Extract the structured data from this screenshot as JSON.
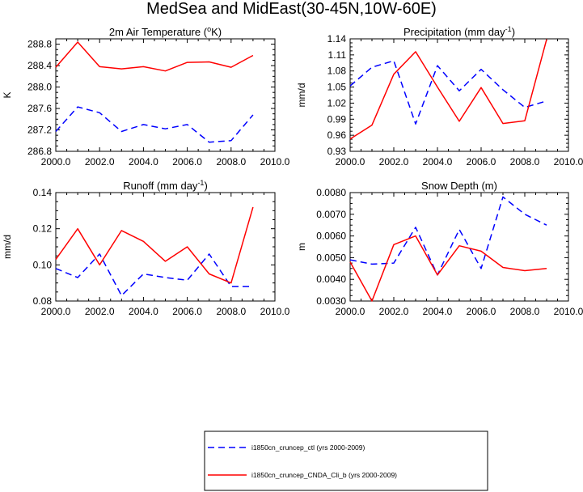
{
  "figure": {
    "title": "MedSea and MidEast(30-45N,10W-60E)"
  },
  "legend": {
    "entries": [
      {
        "label": "i1850cn_cruncep_ctl (yrs 2000-2009)",
        "color": "#0000ff",
        "style": "dashed"
      },
      {
        "label": "i1850cn_cruncep_CNDA_Cli_b (yrs 2000-2009)",
        "color": "#ff0000",
        "style": "solid"
      }
    ]
  },
  "chart_data": [
    {
      "type": "line",
      "title": "2m Air Temperature (°K)",
      "title_base": "2m Air Temperature (",
      "title_sup": "o",
      "title_tail": "K)",
      "xlabel": "",
      "ylabel": "K",
      "xlim": [
        2000,
        2010
      ],
      "ylim": [
        286.8,
        288.9
      ],
      "xticks": [
        2000,
        2002,
        2004,
        2006,
        2008,
        2010
      ],
      "xtick_labels": [
        "2000.0",
        "2002.0",
        "2004.0",
        "2006.0",
        "2008.0",
        "2010.0"
      ],
      "yticks": [
        286.8,
        287.2,
        287.6,
        288.0,
        288.4,
        288.8
      ],
      "ytick_labels": [
        "286.8",
        "287.2",
        "287.6",
        "288.0",
        "288.4",
        "288.8"
      ],
      "x": [
        2000,
        2001,
        2002,
        2003,
        2004,
        2005,
        2006,
        2007,
        2008,
        2009
      ],
      "series": [
        {
          "name": "i1850cn_cruncep_ctl",
          "color": "#0000ff",
          "dash": true,
          "values": [
            287.17,
            287.63,
            287.52,
            287.17,
            287.3,
            287.22,
            287.3,
            286.97,
            287.0,
            287.48
          ]
        },
        {
          "name": "i1850cn_cruncep_CNDA_Cli_b",
          "color": "#ff0000",
          "dash": false,
          "values": [
            288.37,
            288.84,
            288.38,
            288.34,
            288.38,
            288.3,
            288.46,
            288.47,
            288.37,
            288.59
          ]
        }
      ]
    },
    {
      "type": "line",
      "title": "Precipitation (mm day⁻¹)",
      "title_base": "Precipitation (mm day",
      "title_sup": "-1",
      "title_tail": ")",
      "xlabel": "",
      "ylabel": "mm/d",
      "xlim": [
        2000,
        2010
      ],
      "ylim": [
        0.93,
        1.14
      ],
      "xticks": [
        2000,
        2002,
        2004,
        2006,
        2008,
        2010
      ],
      "xtick_labels": [
        "2000.0",
        "2002.0",
        "2004.0",
        "2006.0",
        "2008.0",
        "2010.0"
      ],
      "yticks": [
        0.93,
        0.96,
        0.99,
        1.02,
        1.05,
        1.08,
        1.11,
        1.14
      ],
      "ytick_labels": [
        "0.93",
        "0.96",
        "0.99",
        "1.02",
        "1.05",
        "1.08",
        "1.11",
        "1.14"
      ],
      "x": [
        2000,
        2001,
        2002,
        2003,
        2004,
        2005,
        2006,
        2007,
        2008,
        2009
      ],
      "series": [
        {
          "name": "i1850cn_cruncep_ctl",
          "color": "#0000ff",
          "dash": true,
          "values": [
            1.052,
            1.087,
            1.099,
            0.981,
            1.09,
            1.043,
            1.083,
            1.045,
            1.012,
            1.024
          ]
        },
        {
          "name": "i1850cn_cruncep_CNDA_Cli_b",
          "color": "#ff0000",
          "dash": false,
          "values": [
            0.953,
            0.979,
            1.074,
            1.116,
            1.05,
            0.986,
            1.049,
            0.982,
            0.987,
            1.139
          ]
        }
      ]
    },
    {
      "type": "line",
      "title": "Runoff (mm day⁻¹)",
      "title_base": "Runoff (mm day",
      "title_sup": "-1",
      "title_tail": ")",
      "xlabel": "",
      "ylabel": "mm/d",
      "xlim": [
        2000,
        2010
      ],
      "ylim": [
        0.08,
        0.14
      ],
      "xticks": [
        2000,
        2002,
        2004,
        2006,
        2008,
        2010
      ],
      "xtick_labels": [
        "2000.0",
        "2002.0",
        "2004.0",
        "2006.0",
        "2008.0",
        "2010.0"
      ],
      "yticks": [
        0.08,
        0.1,
        0.12,
        0.14
      ],
      "ytick_labels": [
        "0.08",
        "0.10",
        "0.12",
        "0.14"
      ],
      "x": [
        2000,
        2001,
        2002,
        2003,
        2004,
        2005,
        2006,
        2007,
        2008,
        2009
      ],
      "series": [
        {
          "name": "i1850cn_cruncep_ctl",
          "color": "#0000ff",
          "dash": true,
          "values": [
            0.098,
            0.093,
            0.106,
            0.083,
            0.095,
            0.093,
            0.0915,
            0.106,
            0.088,
            0.088
          ]
        },
        {
          "name": "i1850cn_cruncep_CNDA_Cli_b",
          "color": "#ff0000",
          "dash": false,
          "values": [
            0.103,
            0.12,
            0.1,
            0.119,
            0.113,
            0.102,
            0.11,
            0.095,
            0.09,
            0.132
          ]
        }
      ]
    },
    {
      "type": "line",
      "title": "Snow Depth (m)",
      "title_base": "Snow Depth (m)",
      "title_sup": "",
      "title_tail": "",
      "xlabel": "",
      "ylabel": "m",
      "xlim": [
        2000,
        2010
      ],
      "ylim": [
        0.003,
        0.008
      ],
      "xticks": [
        2000,
        2002,
        2004,
        2006,
        2008,
        2010
      ],
      "xtick_labels": [
        "2000.0",
        "2002.0",
        "2004.0",
        "2006.0",
        "2008.0",
        "2010.0"
      ],
      "yticks": [
        0.003,
        0.004,
        0.005,
        0.006,
        0.007,
        0.008
      ],
      "ytick_labels": [
        "0.0030",
        "0.0040",
        "0.0050",
        "0.0060",
        "0.0070",
        "0.0080"
      ],
      "x": [
        2000,
        2001,
        2002,
        2003,
        2004,
        2005,
        2006,
        2007,
        2008,
        2009
      ],
      "series": [
        {
          "name": "i1850cn_cruncep_ctl",
          "color": "#0000ff",
          "dash": true,
          "values": [
            0.0049,
            0.0047,
            0.00475,
            0.0064,
            0.0042,
            0.0063,
            0.0045,
            0.0078,
            0.007,
            0.0065
          ]
        },
        {
          "name": "i1850cn_cruncep_CNDA_Cli_b",
          "color": "#ff0000",
          "dash": false,
          "values": [
            0.0048,
            0.003,
            0.0056,
            0.006,
            0.0042,
            0.00555,
            0.0053,
            0.00455,
            0.0044,
            0.0045
          ]
        }
      ]
    }
  ]
}
